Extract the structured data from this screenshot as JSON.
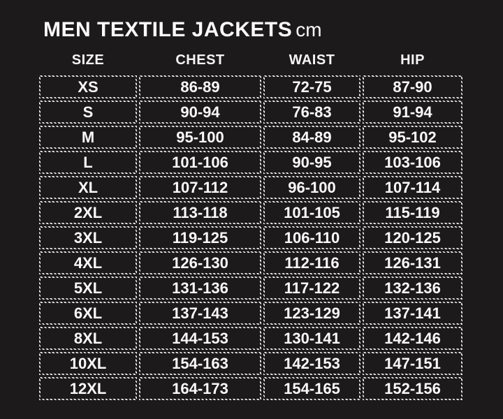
{
  "title": {
    "text": "MEN TEXTILE JACKETS",
    "unit": "cm"
  },
  "chart_data": {
    "type": "table",
    "title": "MEN TEXTILE JACKETS cm",
    "unit": "cm",
    "columns": [
      "SIZE",
      "CHEST",
      "WAIST",
      "HIP"
    ],
    "rows": [
      [
        "XS",
        "86-89",
        "72-75",
        "87-90"
      ],
      [
        "S",
        "90-94",
        "76-83",
        "91-94"
      ],
      [
        "M",
        "95-100",
        "84-89",
        "95-102"
      ],
      [
        "L",
        "101-106",
        "90-95",
        "103-106"
      ],
      [
        "XL",
        "107-112",
        "96-100",
        "107-114"
      ],
      [
        "2XL",
        "113-118",
        "101-105",
        "115-119"
      ],
      [
        "3XL",
        "119-125",
        "106-110",
        "120-125"
      ],
      [
        "4XL",
        "126-130",
        "112-116",
        "126-131"
      ],
      [
        "5XL",
        "131-136",
        "117-122",
        "132-136"
      ],
      [
        "6XL",
        "137-143",
        "123-129",
        "137-141"
      ],
      [
        "8XL",
        "144-153",
        "130-141",
        "142-146"
      ],
      [
        "10XL",
        "154-163",
        "142-153",
        "147-151"
      ],
      [
        "12XL",
        "164-173",
        "154-165",
        "152-156"
      ]
    ]
  },
  "colors": {
    "background": "#1c1a1a",
    "text": "#f7f7f7",
    "border": "#ececec"
  }
}
